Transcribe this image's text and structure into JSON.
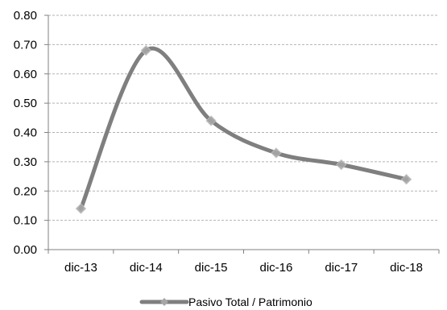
{
  "chart_data": {
    "type": "line",
    "title": "",
    "xlabel": "",
    "ylabel": "",
    "categories": [
      "dic-13",
      "dic-14",
      "dic-15",
      "dic-16",
      "dic-17",
      "dic-18"
    ],
    "series": [
      {
        "name": "Pasivo Total / Patrimonio",
        "values": [
          0.14,
          0.68,
          0.44,
          0.33,
          0.29,
          0.24
        ],
        "color": "#7f7f7f",
        "smooth": true
      }
    ],
    "ylim": [
      0,
      0.8
    ],
    "yticks": [
      "0.00",
      "0.10",
      "0.20",
      "0.30",
      "0.40",
      "0.50",
      "0.60",
      "0.70",
      "0.80"
    ],
    "grid": true,
    "legend": "bottom-center"
  }
}
